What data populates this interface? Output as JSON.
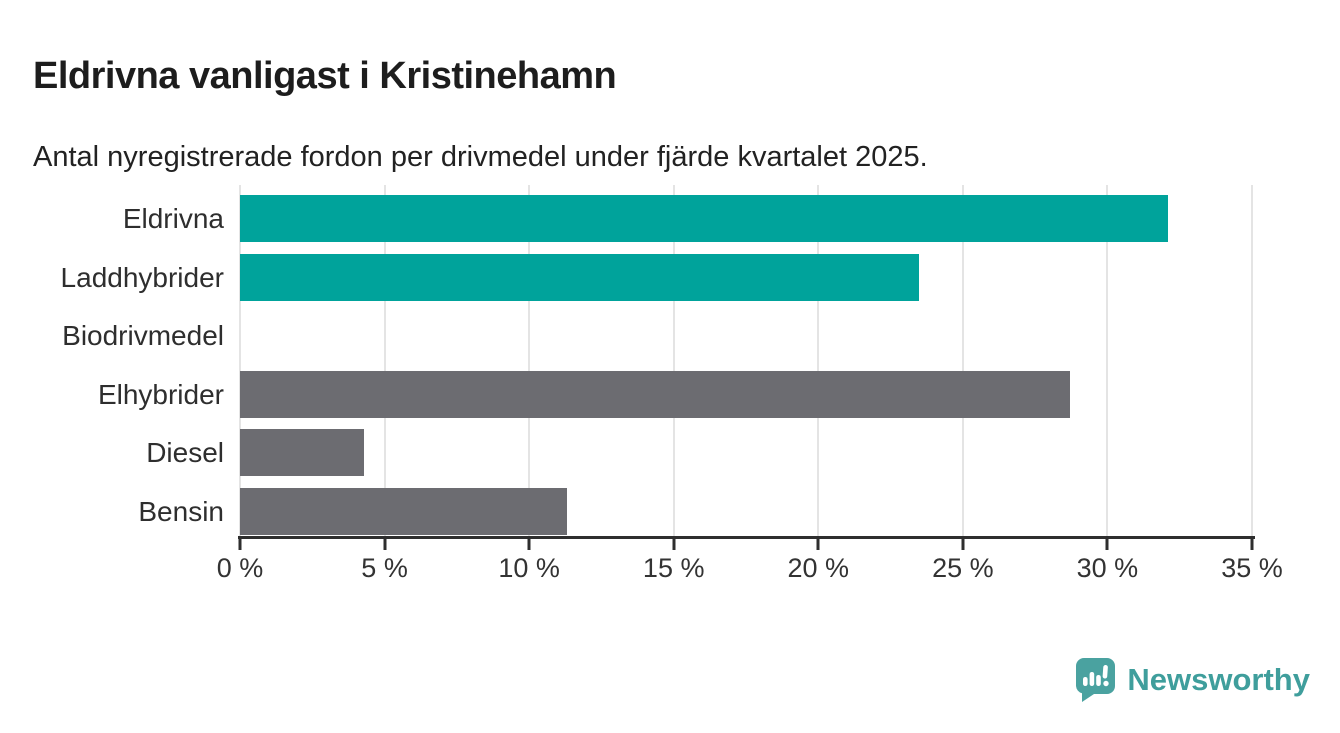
{
  "header": {
    "title": "Eldrivna vanligast i Kristinehamn",
    "subtitle": "Antal nyregistrerade fordon per drivmedel under fjärde kvartalet 2025."
  },
  "chart_data": {
    "type": "bar",
    "orientation": "horizontal",
    "title": "Eldrivna vanligast i Kristinehamn",
    "subtitle": "Antal nyregistrerade fordon per drivmedel under fjärde kvartalet 2025.",
    "categories": [
      "Eldrivna",
      "Laddhybrider",
      "Biodrivmedel",
      "Elhybrider",
      "Diesel",
      "Bensin"
    ],
    "values": [
      32.1,
      23.5,
      0,
      28.7,
      4.3,
      11.3
    ],
    "unit": "%",
    "bar_colors": [
      "#00a39b",
      "#00a39b",
      "#6c6c71",
      "#6c6c71",
      "#6c6c71",
      "#6c6c71"
    ],
    "xlim": [
      0,
      35
    ],
    "x_ticks": [
      0,
      5,
      10,
      15,
      20,
      25,
      30,
      35
    ],
    "x_tick_labels": [
      "0 %",
      "5 %",
      "10 %",
      "15 %",
      "20 %",
      "25 %",
      "30 %",
      "35 %"
    ],
    "xlabel": "",
    "ylabel": "",
    "grid": true,
    "grid_axis": "x",
    "legend": false
  },
  "colors": {
    "accent_teal": "#00a39b",
    "neutral_gray": "#6c6c71",
    "axis": "#2e2e2e",
    "gridline": "#e4e4e4",
    "brand_teal": "#3f9e9c",
    "logo_teal": "#4aa2a0"
  },
  "footer": {
    "brand": "Newsworthy"
  }
}
